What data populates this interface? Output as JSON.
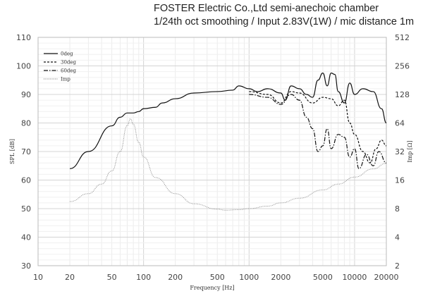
{
  "chart_data": {
    "type": "line",
    "title": [
      "FOSTER Electric Co.,Ltd  semi-anechoic chamber",
      "1/24th oct smoothing / Input 2.83V(1W) / mic distance 1m"
    ],
    "xlabel": "Frequency [Hz]",
    "ylabel": "SPL [dB]",
    "y2label": "Imp [Ω]",
    "xscale": "log",
    "xlim": [
      10,
      20000
    ],
    "ylim": [
      30,
      110
    ],
    "y2scale": "log2",
    "y2lim": [
      2,
      512
    ],
    "grid": true,
    "legend": "top-left",
    "xticks": [
      "10",
      "20",
      "50",
      "100",
      "200",
      "500",
      "1000",
      "2000",
      "5000",
      "10000",
      "20000"
    ],
    "xtickvals": [
      10,
      20,
      50,
      100,
      200,
      500,
      1000,
      2000,
      5000,
      10000,
      20000
    ],
    "yticks": [
      30,
      40,
      50,
      60,
      70,
      80,
      90,
      100,
      110
    ],
    "y2ticks": [
      2,
      4,
      8,
      16,
      32,
      64,
      128,
      256,
      512
    ],
    "series": [
      {
        "name": "0deg",
        "axis": "left",
        "style": "solid",
        "color": "#111111",
        "x": [
          20,
          30,
          50,
          60,
          70,
          80,
          90,
          100,
          130,
          150,
          200,
          300,
          500,
          700,
          800,
          1000,
          1200,
          1500,
          2000,
          2200,
          2500,
          3000,
          3500,
          4000,
          4500,
          5000,
          5500,
          6000,
          6500,
          7000,
          8000,
          9000,
          10000,
          12000,
          15000,
          18000,
          20000
        ],
        "y": [
          64,
          70,
          79,
          82,
          83.5,
          83.5,
          84,
          85,
          85.5,
          87,
          88.5,
          90.5,
          91,
          91.5,
          93,
          92,
          91,
          92,
          90.5,
          88,
          93,
          92,
          90,
          89,
          95,
          97.5,
          93,
          97.5,
          97,
          91,
          87,
          94,
          90,
          92,
          91,
          85,
          80
        ]
      },
      {
        "name": "30deg",
        "axis": "left",
        "style": "dashed",
        "color": "#111111",
        "x": [
          1000,
          1500,
          2000,
          2500,
          3000,
          4000,
          5000,
          6000,
          7000,
          8000,
          9000,
          10000,
          12000,
          14000,
          16000,
          18000,
          20000
        ],
        "y": [
          91,
          90,
          87,
          91,
          90.5,
          87,
          89,
          88.5,
          86,
          88,
          80,
          76,
          70,
          66,
          71,
          74,
          72
        ]
      },
      {
        "name": "60deg",
        "axis": "left",
        "style": "dashdot",
        "color": "#111111",
        "x": [
          1000,
          1500,
          2000,
          2500,
          3000,
          3500,
          4000,
          4500,
          5000,
          5500,
          6000,
          7000,
          8000,
          9000,
          10000,
          11000,
          13000,
          15000,
          17000,
          20000
        ],
        "y": [
          90,
          89,
          86.5,
          90,
          88,
          82,
          78,
          70,
          72,
          78,
          71,
          76,
          75,
          68,
          71,
          64,
          69,
          65,
          70,
          66
        ]
      },
      {
        "name": "Imp",
        "axis": "right",
        "style": "dotted",
        "color": "#888888",
        "x": [
          20,
          30,
          40,
          50,
          60,
          70,
          75,
          80,
          90,
          100,
          130,
          200,
          300,
          500,
          600,
          800,
          1000,
          1500,
          2000,
          3000,
          5000,
          7000,
          10000,
          15000,
          20000
        ],
        "y": [
          9.5,
          11.5,
          14.5,
          20,
          32,
          60,
          71,
          62,
          40,
          28,
          17,
          11.5,
          9,
          7.9,
          7.7,
          7.8,
          8,
          8.5,
          9.2,
          10.3,
          12.6,
          14.5,
          17.2,
          21,
          24
        ]
      }
    ]
  }
}
